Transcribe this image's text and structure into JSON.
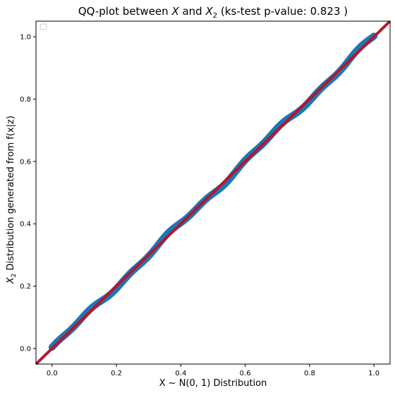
{
  "chart_data": {
    "type": "scatter",
    "title_prefix": "QQ-plot between ",
    "title_var1": "X",
    "title_mid": " and ",
    "title_var2": "X",
    "title_var2_sub": "2",
    "title_suffix": "  (ks-test p-value: 0.823 )",
    "xlabel": "X ~ N(0, 1) Distribution",
    "ylabel_var": "X",
    "ylabel_sub": "2",
    "ylabel_rest": " Distribution generated from f(x|z)",
    "xlim": [
      -0.05,
      1.05
    ],
    "ylim": [
      -0.05,
      1.05
    ],
    "xticks": [
      "0.0",
      "0.2",
      "0.4",
      "0.6",
      "0.8",
      "1.0"
    ],
    "yticks": [
      "0.0",
      "0.2",
      "0.4",
      "0.6",
      "0.8",
      "1.0"
    ],
    "grid": false,
    "legend": "top-left (empty)",
    "series": [
      {
        "kind": "quantile points",
        "color": "#1f77b4",
        "x_range": [
          0.0,
          1.0
        ],
        "y": "approximately equal to x (deviations within about ±0.01)"
      },
      {
        "kind": "reference line y = x",
        "color": "#b2182b"
      }
    ]
  }
}
